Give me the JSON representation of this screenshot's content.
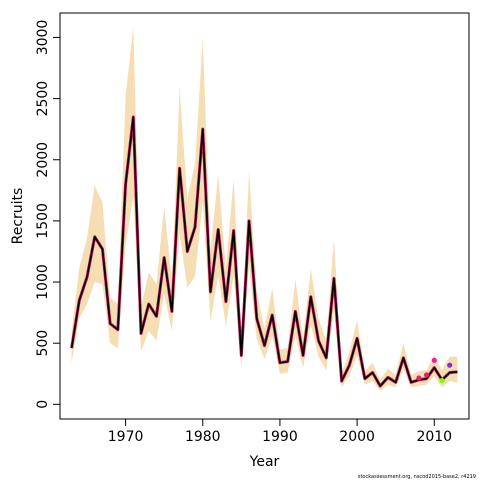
{
  "chart_data": {
    "type": "line",
    "xlabel": "Year",
    "ylabel": "Recruits",
    "caption": "stockassessment.org, nscod2015-base2, r4219",
    "xlim": [
      1961.5,
      2014.5
    ],
    "ylim": [
      -120,
      3200
    ],
    "x_ticks": [
      1970,
      1980,
      1990,
      2000,
      2010
    ],
    "y_ticks": [
      0,
      500,
      1000,
      1500,
      2000,
      2500,
      3000
    ],
    "grid": false,
    "colors": {
      "band": "#f5deb3",
      "estimate": "#000000",
      "overlay": "#c2185b"
    },
    "series": [
      {
        "x": [
          1963,
          1964,
          1965,
          1966,
          1967,
          1968,
          1969,
          1970,
          1971,
          1972,
          1973,
          1974,
          1975,
          1976,
          1977,
          1978,
          1979,
          1980,
          1981,
          1982,
          1983,
          1984,
          1985,
          1986,
          1987,
          1988,
          1989,
          1990,
          1991,
          1992,
          1993,
          1994,
          1995,
          1996,
          1997,
          1998,
          1999,
          2000,
          2001,
          2002,
          2003,
          2004,
          2005,
          2006,
          2007,
          2008,
          2009,
          2010,
          2011,
          2012,
          2013
        ],
        "values": [
          460,
          850,
          1040,
          1370,
          1270,
          660,
          610,
          1800,
          2350,
          580,
          820,
          720,
          1200,
          760,
          1930,
          1250,
          1450,
          2250,
          920,
          1430,
          840,
          1420,
          400,
          1500,
          700,
          480,
          730,
          340,
          350,
          760,
          400,
          880,
          520,
          380,
          1030,
          190,
          320,
          540,
          210,
          260,
          150,
          220,
          180,
          380,
          180,
          200,
          210,
          300,
          200,
          260,
          265
        ],
        "lower": [
          340,
          700,
          820,
          1000,
          980,
          500,
          460,
          1300,
          1700,
          430,
          600,
          520,
          900,
          600,
          1400,
          950,
          1050,
          1650,
          680,
          1050,
          640,
          1050,
          300,
          1130,
          530,
          370,
          560,
          250,
          260,
          560,
          300,
          650,
          390,
          280,
          760,
          140,
          230,
          400,
          160,
          190,
          110,
          160,
          140,
          290,
          140,
          150,
          160,
          230,
          140,
          190,
          175
        ],
        "upper": [
          600,
          1120,
          1360,
          1790,
          1650,
          870,
          820,
          2520,
          3090,
          790,
          1080,
          980,
          1620,
          1000,
          2590,
          1680,
          1970,
          3000,
          1260,
          1880,
          1110,
          1850,
          540,
          1910,
          920,
          620,
          950,
          450,
          460,
          1020,
          540,
          1110,
          700,
          520,
          1360,
          250,
          430,
          690,
          270,
          340,
          200,
          290,
          240,
          500,
          240,
          270,
          280,
          400,
          280,
          390,
          390
        ]
      }
    ],
    "points": [
      {
        "x": 2008,
        "value": 215,
        "color": "#e91e63"
      },
      {
        "x": 2009,
        "value": 240,
        "color": "#e91e63"
      },
      {
        "x": 2010,
        "value": 360,
        "color": "#ff1493"
      },
      {
        "x": 2011,
        "value": 195,
        "color": "#7cfc00"
      },
      {
        "x": 2012,
        "value": 320,
        "color": "#8a2be2"
      }
    ]
  }
}
